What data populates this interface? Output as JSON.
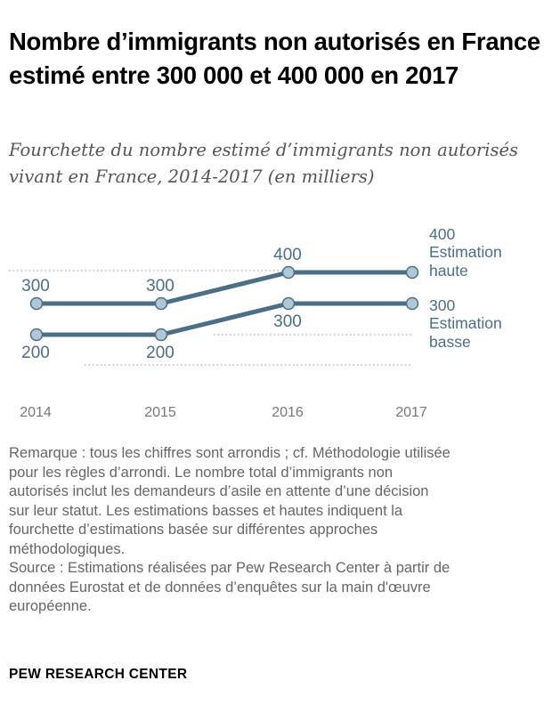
{
  "title": "Nombre d’immigrants non autorisés en France estimé entre 300 000 et 400 000 en 2017",
  "subtitle": "Fourchette du nombre estimé d’immigrants non autorisés vivant en France, 2014-2017 (en milliers)",
  "colors": {
    "series": "#4a6f86",
    "marker_fill": "#b2c7d6",
    "axis_text": "#777777",
    "gridline": "#aaaaaa"
  },
  "chart_data": {
    "type": "line",
    "x": [
      "2014",
      "2015",
      "2016",
      "2017"
    ],
    "ylim": [
      180,
      420
    ],
    "series": [
      {
        "name": "Estimation haute",
        "values": [
          300,
          300,
          400,
          400
        ],
        "labels": [
          "300",
          "300",
          "400",
          "400"
        ]
      },
      {
        "name": "Estimation basse",
        "values": [
          200,
          200,
          300,
          300
        ],
        "labels": [
          "200",
          "200",
          "300",
          "300"
        ]
      }
    ],
    "grid": true
  },
  "note_lines": [
    "Remarque : tous les chiffres sont arrondis ; cf. Méthodologie utilisée",
    "pour les règles d’arrondi. Le nombre total d’immigrants non",
    "autorisés inclut les demandeurs d’asile en attente d’une décision",
    "sur leur statut. Les estimations basses et hautes indiquent la",
    "fourchette d’estimations basée sur différentes approches",
    "méthodologiques."
  ],
  "source_lines": [
    "Source : Estimations réalisées par Pew Research Center à partir de",
    "données Eurostat et de données d’enquêtes sur la main d'œuvre",
    "européenne."
  ],
  "brand": "PEW RESEARCH CENTER"
}
